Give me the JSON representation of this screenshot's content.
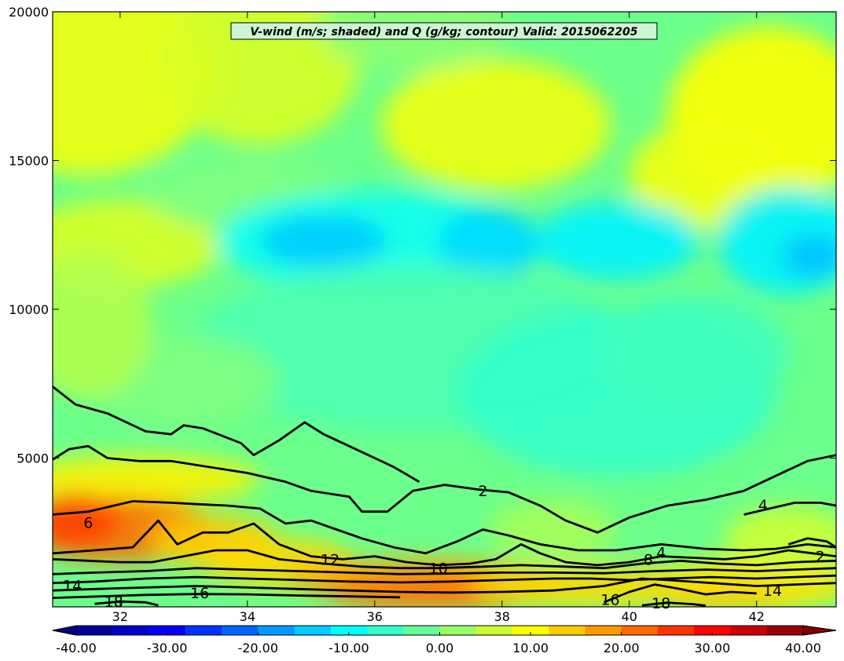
{
  "chart_data": {
    "type": "heatmap",
    "title": "V-wind (m/s; shaded) and Q (g/kg; contour) Valid: 2015062205",
    "xlabel": "",
    "ylabel": "",
    "xlim": [
      30.94,
      43.25
    ],
    "ylim": [
      0,
      20000
    ],
    "x_ticks": [
      32,
      34,
      36,
      38,
      40,
      42
    ],
    "y_ticks": [
      5000,
      10000,
      15000,
      20000
    ],
    "grid": false,
    "shaded_variable": {
      "name": "V-wind (m/s)",
      "colormap": "jet",
      "range": [
        -40,
        40
      ],
      "approximate_field": [
        {
          "region": "upper troposphere 14000-20000",
          "value": 5
        },
        {
          "region": "jet minimum 11000-14000 between 34 and 40",
          "value": -12
        },
        {
          "region": "jet minimum 11000-14000 east of 42",
          "value": -10
        },
        {
          "region": "mid levels 5000-10000",
          "value": -5
        },
        {
          "region": "boundary layer 0-3000 west of 33",
          "value": 22
        },
        {
          "region": "boundary layer 0-1000 between 35 and 40",
          "value": 18
        }
      ]
    },
    "contour_variable": {
      "name": "Q (g/kg)",
      "levels": [
        2,
        4,
        6,
        8,
        10,
        12,
        14,
        16,
        18
      ],
      "labels_shown": [
        {
          "text": "2",
          "x": 37.7,
          "y": 3900
        },
        {
          "text": "4",
          "x": 42.1,
          "y": 3430
        },
        {
          "text": "6",
          "x": 31.5,
          "y": 2830
        },
        {
          "text": "2",
          "x": 43.0,
          "y": 1700
        },
        {
          "text": "4",
          "x": 40.5,
          "y": 1830
        },
        {
          "text": "8",
          "x": 40.3,
          "y": 1600
        },
        {
          "text": "12",
          "x": 35.3,
          "y": 1600
        },
        {
          "text": "10",
          "x": 37.0,
          "y": 1300
        },
        {
          "text": "14",
          "x": 31.25,
          "y": 720
        },
        {
          "text": "16",
          "x": 33.25,
          "y": 470
        },
        {
          "text": "14",
          "x": 42.25,
          "y": 550
        },
        {
          "text": "16",
          "x": 39.7,
          "y": 250
        },
        {
          "text": "18",
          "x": 31.9,
          "y": 180
        },
        {
          "text": "18",
          "x": 40.5,
          "y": 130
        }
      ]
    },
    "colorbar": {
      "orientation": "horizontal",
      "extend": "both",
      "min": -40,
      "max": 40,
      "step": 4,
      "tick_labels": [
        "-40.00",
        "-30.00",
        "-20.00",
        "-10.00",
        "0.00",
        "10.00",
        "20.00",
        "30.00",
        "40.00"
      ]
    }
  },
  "colors": {
    "frame": "#000000",
    "contour": "#000000",
    "title_box": "#ccf5d1"
  }
}
